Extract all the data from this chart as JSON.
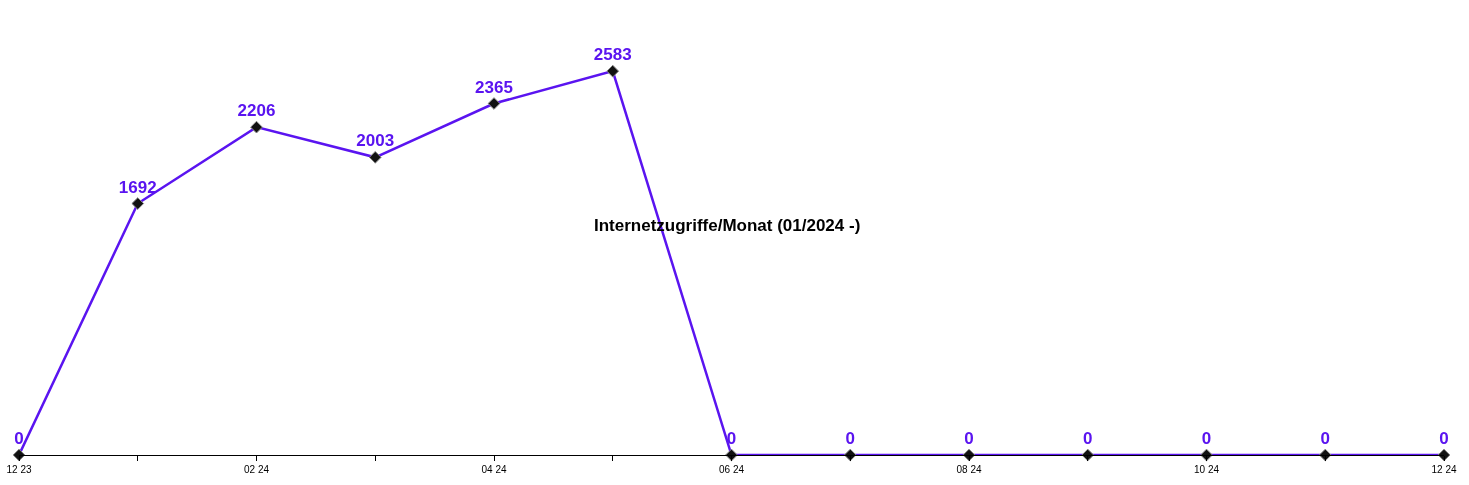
{
  "chart_data": {
    "type": "line",
    "title": "Internetzugriffe/Monat (01/2024 -)",
    "categories": [
      "12 23",
      null,
      "02 24",
      null,
      "04 24",
      null,
      "06 24",
      null,
      "08 24",
      null,
      "10 24",
      null,
      "12 24"
    ],
    "series": [
      {
        "color": "#5a14f0",
        "values": [
          0,
          1692,
          2206,
          2003,
          2365,
          2583,
          0,
          0,
          0,
          0,
          0,
          0,
          0
        ]
      }
    ],
    "data_labels": true,
    "marker": "diamond",
    "grid": false
  }
}
